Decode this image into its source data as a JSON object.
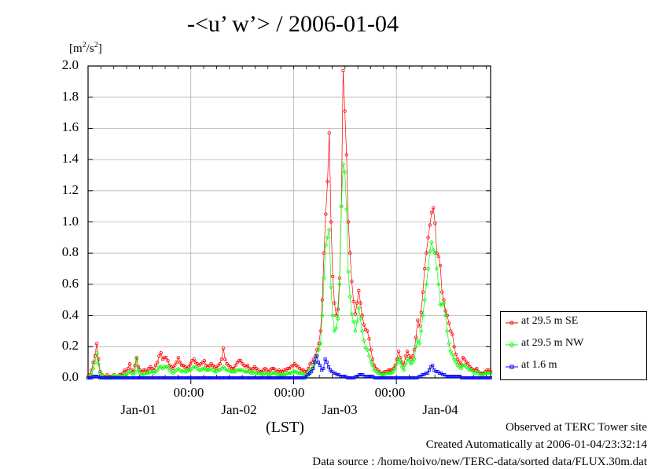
{
  "title": "-<u’ w’> / 2006-01-04",
  "unit_label": "[m2/s2]",
  "unit_base": "[m",
  "unit_sup": "2",
  "unit_mid": "/s",
  "unit_sup2": "2",
  "unit_end": "]",
  "xlabel": "(LST)",
  "footer": {
    "line1": "Observed at TERC Tower site",
    "line2": "Created Automatically at 2006-01-04/23:32:14",
    "line3": "Data source : /home/hoivo/new/TERC-data/sorted  data/FLUX.30m.dat"
  },
  "legend": [
    {
      "label": "at 29.5 m SE",
      "color": "#ff0000"
    },
    {
      "label": "at 29.5 m NW",
      "color": "#00ff00"
    },
    {
      "label": "at 1.6 m",
      "color": "#0000ff"
    }
  ],
  "chart_data": {
    "type": "line",
    "title": "-<u’ w’> / 2006-01-04",
    "ylabel": "[m2/s2]",
    "xlabel": "(LST)",
    "ylim": [
      0,
      2.0
    ],
    "yticks": [
      "0.0",
      "0.2",
      "0.4",
      "0.6",
      "0.8",
      "1.0",
      "1.2",
      "1.4",
      "1.6",
      "1.8",
      "2.0"
    ],
    "xlim_hours": [
      0,
      94
    ],
    "x_time_labels": [
      "00:00",
      "00:00",
      "00:00"
    ],
    "x_date_labels": [
      "Jan-01",
      "Jan-02",
      "Jan-03",
      "Jan-04"
    ],
    "grid": true,
    "legend_position": "right",
    "series": [
      {
        "name": "at 29.5 m SE",
        "color": "#ff0000",
        "marker": "circle",
        "values": [
          0.01,
          0.02,
          0.05,
          0.1,
          0.14,
          0.22,
          0.12,
          0.04,
          0.02,
          0.01,
          0.01,
          0.02,
          0.01,
          0.01,
          0.01,
          0.02,
          0.01,
          0.01,
          0.02,
          0.02,
          0.03,
          0.05,
          0.04,
          0.06,
          0.09,
          0.05,
          0.04,
          0.08,
          0.13,
          0.07,
          0.05,
          0.04,
          0.05,
          0.05,
          0.04,
          0.06,
          0.07,
          0.06,
          0.05,
          0.08,
          0.1,
          0.14,
          0.16,
          0.12,
          0.13,
          0.13,
          0.11,
          0.08,
          0.07,
          0.06,
          0.08,
          0.1,
          0.13,
          0.1,
          0.08,
          0.08,
          0.07,
          0.06,
          0.07,
          0.09,
          0.11,
          0.12,
          0.1,
          0.09,
          0.08,
          0.09,
          0.1,
          0.11,
          0.08,
          0.07,
          0.08,
          0.09,
          0.08,
          0.07,
          0.06,
          0.08,
          0.09,
          0.12,
          0.19,
          0.12,
          0.09,
          0.08,
          0.07,
          0.06,
          0.06,
          0.08,
          0.1,
          0.11,
          0.11,
          0.09,
          0.08,
          0.07,
          0.08,
          0.06,
          0.05,
          0.06,
          0.07,
          0.06,
          0.05,
          0.04,
          0.04,
          0.05,
          0.06,
          0.05,
          0.04,
          0.05,
          0.06,
          0.06,
          0.05,
          0.04,
          0.05,
          0.04,
          0.04,
          0.05,
          0.05,
          0.06,
          0.06,
          0.07,
          0.08,
          0.09,
          0.08,
          0.07,
          0.06,
          0.05,
          0.05,
          0.04,
          0.04,
          0.06,
          0.09,
          0.1,
          0.12,
          0.14,
          0.18,
          0.22,
          0.3,
          0.5,
          0.8,
          1.05,
          1.26,
          1.57,
          1.0,
          0.65,
          0.48,
          0.4,
          0.44,
          0.64,
          1.1,
          1.97,
          1.71,
          1.43,
          1.0,
          0.8,
          0.62,
          0.49,
          0.41,
          0.48,
          0.56,
          0.48,
          0.4,
          0.34,
          0.31,
          0.3,
          0.25,
          0.18,
          0.12,
          0.08,
          0.06,
          0.05,
          0.04,
          0.03,
          0.03,
          0.04,
          0.04,
          0.05,
          0.05,
          0.05,
          0.06,
          0.08,
          0.12,
          0.17,
          0.13,
          0.1,
          0.08,
          0.14,
          0.17,
          0.14,
          0.12,
          0.14,
          0.18,
          0.26,
          0.37,
          0.33,
          0.42,
          0.55,
          0.7,
          0.8,
          0.9,
          0.98,
          1.06,
          1.09,
          0.99,
          0.8,
          0.78,
          0.72,
          0.55,
          0.5,
          0.43,
          0.4,
          0.35,
          0.3,
          0.28,
          0.2,
          0.15,
          0.12,
          0.1,
          0.08,
          0.13,
          0.12,
          0.1,
          0.09,
          0.07,
          0.06,
          0.05,
          0.05,
          0.06,
          0.04,
          0.03,
          0.03,
          0.03,
          0.04,
          0.05,
          0.05,
          0.04
        ]
      },
      {
        "name": "at 29.5 m NW",
        "color": "#00ff00",
        "marker": "diamond",
        "values": [
          0.0,
          0.01,
          0.02,
          0.06,
          0.1,
          0.16,
          0.09,
          0.03,
          0.01,
          0.01,
          0.0,
          0.01,
          0.0,
          0.0,
          0.01,
          0.01,
          0.01,
          0.01,
          0.01,
          0.01,
          0.01,
          0.02,
          0.02,
          0.03,
          0.04,
          0.03,
          0.02,
          0.04,
          0.12,
          0.05,
          0.03,
          0.02,
          0.02,
          0.03,
          0.03,
          0.03,
          0.04,
          0.04,
          0.03,
          0.04,
          0.05,
          0.07,
          0.07,
          0.06,
          0.07,
          0.07,
          0.07,
          0.05,
          0.04,
          0.03,
          0.04,
          0.05,
          0.06,
          0.05,
          0.04,
          0.05,
          0.04,
          0.04,
          0.05,
          0.05,
          0.06,
          0.07,
          0.07,
          0.06,
          0.05,
          0.05,
          0.06,
          0.06,
          0.05,
          0.05,
          0.05,
          0.06,
          0.05,
          0.04,
          0.04,
          0.05,
          0.05,
          0.06,
          0.07,
          0.06,
          0.05,
          0.05,
          0.04,
          0.04,
          0.04,
          0.04,
          0.05,
          0.05,
          0.05,
          0.05,
          0.04,
          0.04,
          0.04,
          0.04,
          0.03,
          0.03,
          0.04,
          0.03,
          0.03,
          0.03,
          0.02,
          0.02,
          0.03,
          0.03,
          0.02,
          0.02,
          0.03,
          0.03,
          0.03,
          0.02,
          0.02,
          0.02,
          0.02,
          0.02,
          0.02,
          0.03,
          0.03,
          0.03,
          0.04,
          0.04,
          0.04,
          0.03,
          0.03,
          0.03,
          0.02,
          0.02,
          0.02,
          0.03,
          0.05,
          0.06,
          0.08,
          0.1,
          0.14,
          0.18,
          0.22,
          0.4,
          0.64,
          0.85,
          0.9,
          0.95,
          0.58,
          0.4,
          0.3,
          0.32,
          0.38,
          0.6,
          1.1,
          1.37,
          1.32,
          1.08,
          0.68,
          0.52,
          0.41,
          0.36,
          0.3,
          0.36,
          0.45,
          0.38,
          0.3,
          0.24,
          0.19,
          0.18,
          0.14,
          0.1,
          0.08,
          0.05,
          0.04,
          0.03,
          0.03,
          0.02,
          0.02,
          0.02,
          0.03,
          0.03,
          0.03,
          0.03,
          0.04,
          0.06,
          0.09,
          0.12,
          0.1,
          0.07,
          0.05,
          0.09,
          0.12,
          0.11,
          0.09,
          0.1,
          0.12,
          0.2,
          0.24,
          0.22,
          0.3,
          0.4,
          0.5,
          0.6,
          0.7,
          0.81,
          0.87,
          0.82,
          0.8,
          0.7,
          0.6,
          0.47,
          0.47,
          0.48,
          0.4,
          0.3,
          0.22,
          0.17,
          0.15,
          0.12,
          0.1,
          0.08,
          0.07,
          0.06,
          0.08,
          0.08,
          0.07,
          0.06,
          0.05,
          0.05,
          0.04,
          0.03,
          0.04,
          0.03,
          0.02,
          0.02,
          0.02,
          0.03,
          0.03,
          0.03,
          0.03
        ]
      },
      {
        "name": "at 1.6 m",
        "color": "#0000ff",
        "marker": "square",
        "values": [
          0.0,
          0.0,
          0.0,
          0.01,
          0.01,
          0.01,
          0.01,
          0.0,
          0.0,
          0.0,
          0.0,
          0.0,
          0.0,
          0.0,
          0.0,
          0.0,
          0.0,
          0.0,
          0.0,
          0.0,
          0.0,
          0.0,
          0.0,
          0.0,
          0.0,
          0.0,
          0.0,
          0.0,
          0.0,
          0.0,
          0.0,
          0.0,
          0.0,
          0.0,
          0.0,
          0.0,
          0.0,
          0.0,
          0.0,
          0.0,
          0.0,
          0.0,
          0.0,
          0.0,
          0.0,
          0.0,
          0.0,
          0.0,
          0.0,
          0.0,
          0.0,
          0.0,
          0.0,
          0.0,
          0.0,
          0.0,
          0.0,
          0.0,
          0.0,
          0.0,
          0.0,
          0.0,
          0.0,
          0.0,
          0.0,
          0.0,
          0.0,
          0.0,
          0.0,
          0.0,
          0.0,
          0.0,
          0.0,
          0.0,
          0.0,
          0.0,
          0.0,
          0.0,
          0.0,
          0.0,
          0.0,
          0.0,
          0.0,
          0.0,
          0.0,
          0.0,
          0.0,
          0.0,
          0.0,
          0.0,
          0.0,
          0.0,
          0.0,
          0.0,
          0.0,
          0.0,
          0.0,
          0.0,
          0.0,
          0.0,
          0.0,
          0.0,
          0.0,
          0.0,
          0.0,
          0.0,
          0.0,
          0.0,
          0.0,
          0.0,
          0.0,
          0.0,
          0.0,
          0.0,
          0.0,
          0.0,
          0.0,
          0.0,
          0.0,
          0.0,
          0.0,
          0.0,
          0.0,
          0.0,
          0.0,
          0.0,
          0.0,
          0.0,
          0.01,
          0.02,
          0.03,
          0.04,
          0.06,
          0.1,
          0.14,
          0.1,
          0.08,
          0.05,
          0.06,
          0.12,
          0.1,
          0.07,
          0.05,
          0.04,
          0.03,
          0.03,
          0.02,
          0.02,
          0.01,
          0.01,
          0.01,
          0.01,
          0.0,
          0.0,
          0.0,
          0.0,
          0.0,
          0.01,
          0.01,
          0.02,
          0.02,
          0.02,
          0.01,
          0.01,
          0.01,
          0.01,
          0.01,
          0.01,
          0.0,
          0.0,
          0.0,
          0.0,
          0.0,
          0.0,
          0.0,
          0.0,
          0.0,
          0.0,
          0.0,
          0.0,
          0.0,
          0.0,
          0.0,
          0.0,
          0.0,
          0.0,
          0.0,
          0.0,
          0.0,
          0.0,
          0.0,
          0.0,
          0.0,
          0.0,
          0.01,
          0.01,
          0.02,
          0.02,
          0.03,
          0.03,
          0.05,
          0.07,
          0.08,
          0.05,
          0.04,
          0.04,
          0.03,
          0.03,
          0.02,
          0.02,
          0.01,
          0.01,
          0.01,
          0.01,
          0.01,
          0.01,
          0.01,
          0.01,
          0.01,
          0.0,
          0.0,
          0.0,
          0.0,
          0.0,
          0.0,
          0.0,
          0.0,
          0.0,
          0.0,
          0.0,
          0.0,
          0.0,
          0.0,
          0.0,
          0.0,
          0.0,
          0.0
        ]
      }
    ]
  }
}
